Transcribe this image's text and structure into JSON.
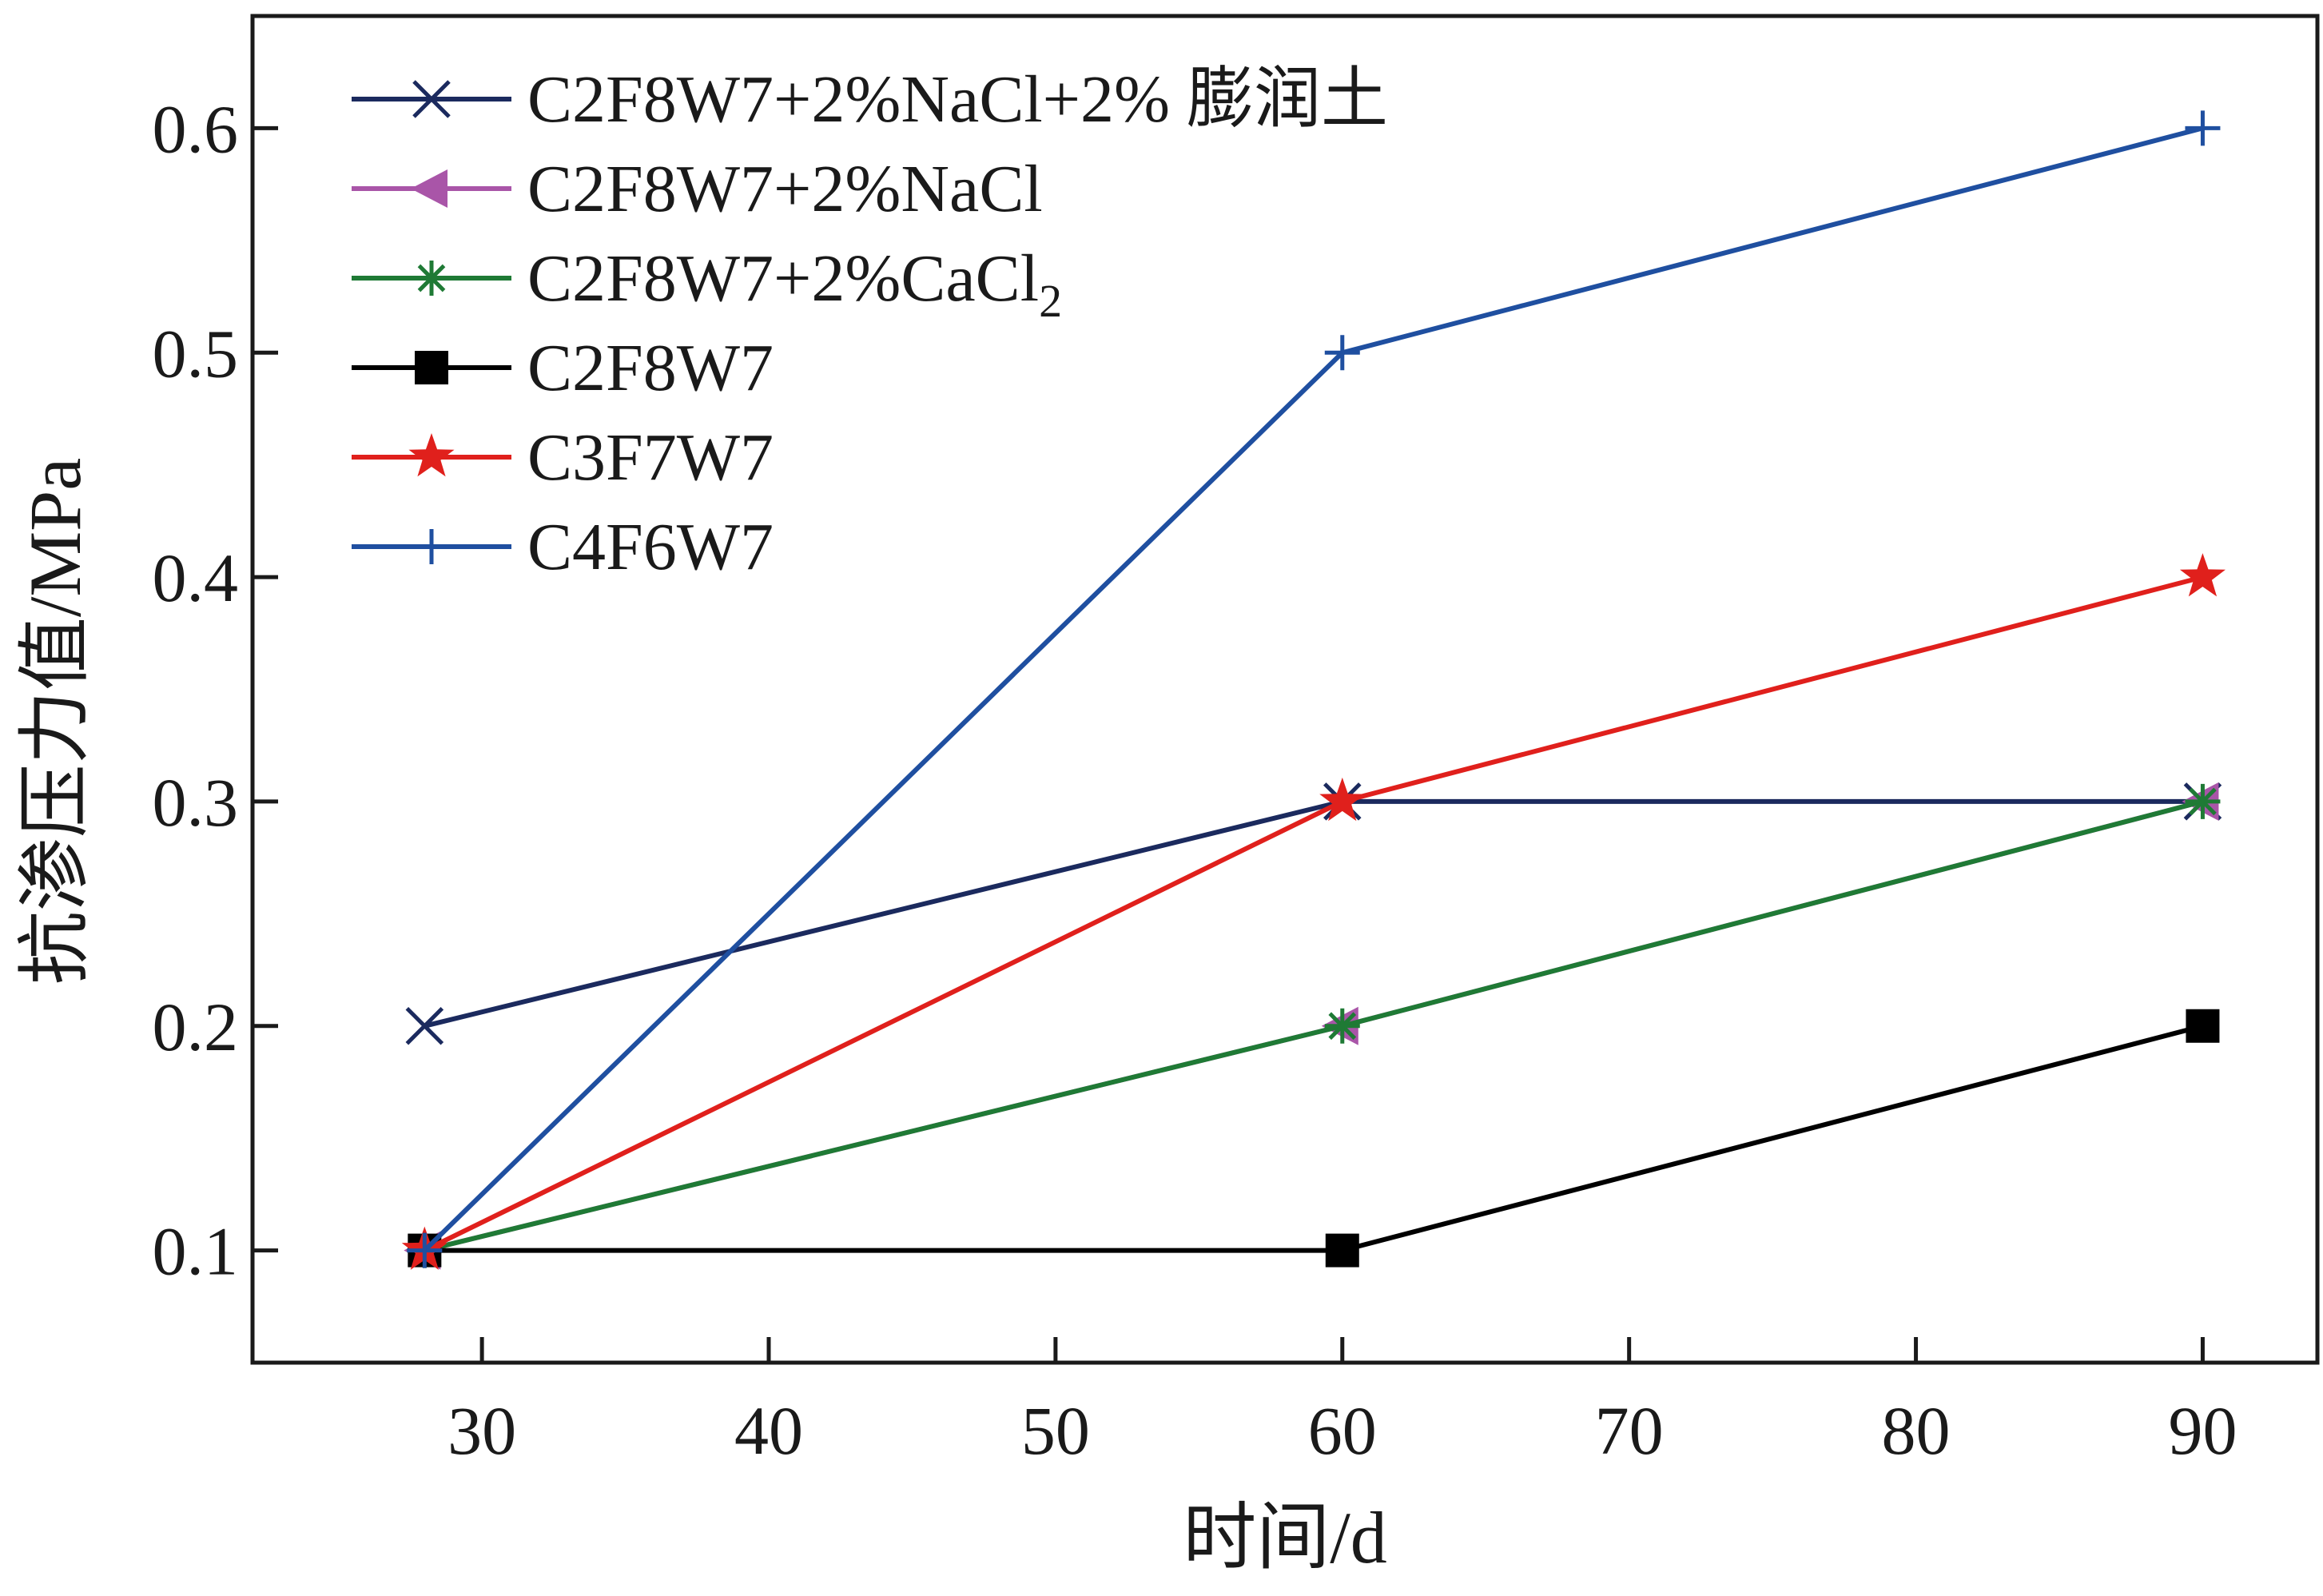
{
  "chart_data": {
    "type": "line",
    "title": "",
    "xlabel": "时间/d",
    "ylabel": "抗渗压力值/MPa",
    "xlim": [
      22,
      94
    ],
    "ylim": [
      0.05,
      0.65
    ],
    "x_ticks": [
      30,
      40,
      50,
      60,
      70,
      80,
      90
    ],
    "y_ticks": [
      0.1,
      0.2,
      0.3,
      0.4,
      0.5,
      0.6
    ],
    "x_tick_labels": [
      "30",
      "40",
      "50",
      "60",
      "70",
      "80",
      "90"
    ],
    "y_tick_labels": [
      "0.1",
      "0.2",
      "0.3",
      "0.4",
      "0.5",
      "0.6"
    ],
    "grid": false,
    "legend_position": "top-left",
    "series": [
      {
        "name": "C2F8W7+2%NaCl+2% 膨润土",
        "label_main": "C2F8W7+2%NaCl+2% 膨润土",
        "label_sub": "",
        "color": "#1b2a5e",
        "marker": "x",
        "x": [
          28,
          60,
          90
        ],
        "y": [
          0.2,
          0.3,
          0.3
        ]
      },
      {
        "name": "C2F8W7+2%NaCl",
        "label_main": "C2F8W7+2%NaCl",
        "label_sub": "",
        "color": "#a955a8",
        "marker": "triangle-left",
        "x": [
          28,
          60,
          90
        ],
        "y": [
          0.1,
          0.2,
          0.3
        ]
      },
      {
        "name": "C2F8W7+2%CaCl2",
        "label_main": "C2F8W7+2%CaCl",
        "label_sub": "2",
        "color": "#1f7a35",
        "marker": "asterisk",
        "x": [
          28,
          60,
          90
        ],
        "y": [
          0.1,
          0.2,
          0.3
        ]
      },
      {
        "name": "C2F8W7",
        "label_main": "C2F8W7",
        "label_sub": "",
        "color": "#000000",
        "marker": "square",
        "x": [
          28,
          60,
          90
        ],
        "y": [
          0.1,
          0.1,
          0.2
        ]
      },
      {
        "name": "C3F7W7",
        "label_main": "C3F7W7",
        "label_sub": "",
        "color": "#e0201c",
        "marker": "star",
        "x": [
          28,
          60,
          90
        ],
        "y": [
          0.1,
          0.3,
          0.4
        ]
      },
      {
        "name": "C4F6W7",
        "label_main": "C4F6W7",
        "label_sub": "",
        "color": "#1f4fa0",
        "marker": "plus",
        "x": [
          28,
          60,
          90
        ],
        "y": [
          0.1,
          0.5,
          0.6
        ]
      }
    ]
  }
}
